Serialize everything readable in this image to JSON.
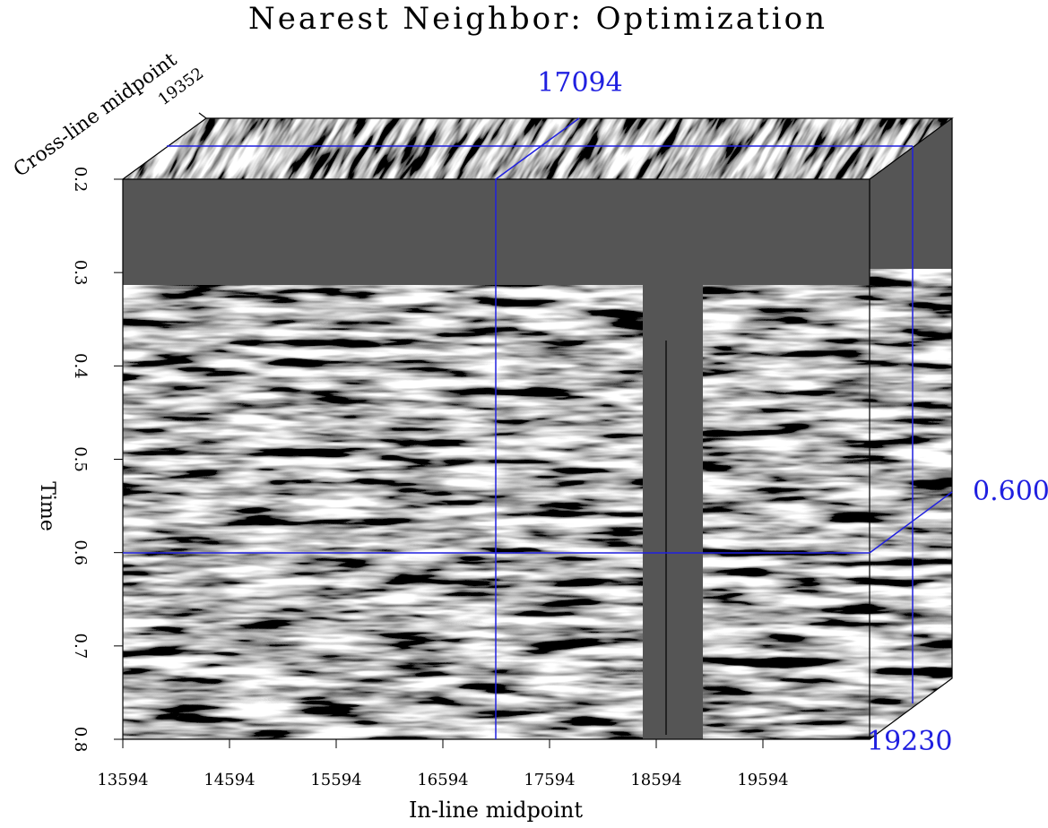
{
  "title": "Nearest Neighbor: Optimization",
  "x_axis": {
    "label": "In-line midpoint",
    "ticks": [
      "13594",
      "14594",
      "15594",
      "16594",
      "17594",
      "18594",
      "19594"
    ]
  },
  "y_axis": {
    "label": "Time",
    "ticks": [
      "0.2",
      "0.3",
      "0.4",
      "0.5",
      "0.6",
      "0.7",
      "0.8"
    ]
  },
  "z_axis": {
    "label": "Cross-line midpoint",
    "tick": "19352"
  },
  "slices": {
    "in_line": "17094",
    "time": "0.600",
    "cross_line": "19230"
  }
}
